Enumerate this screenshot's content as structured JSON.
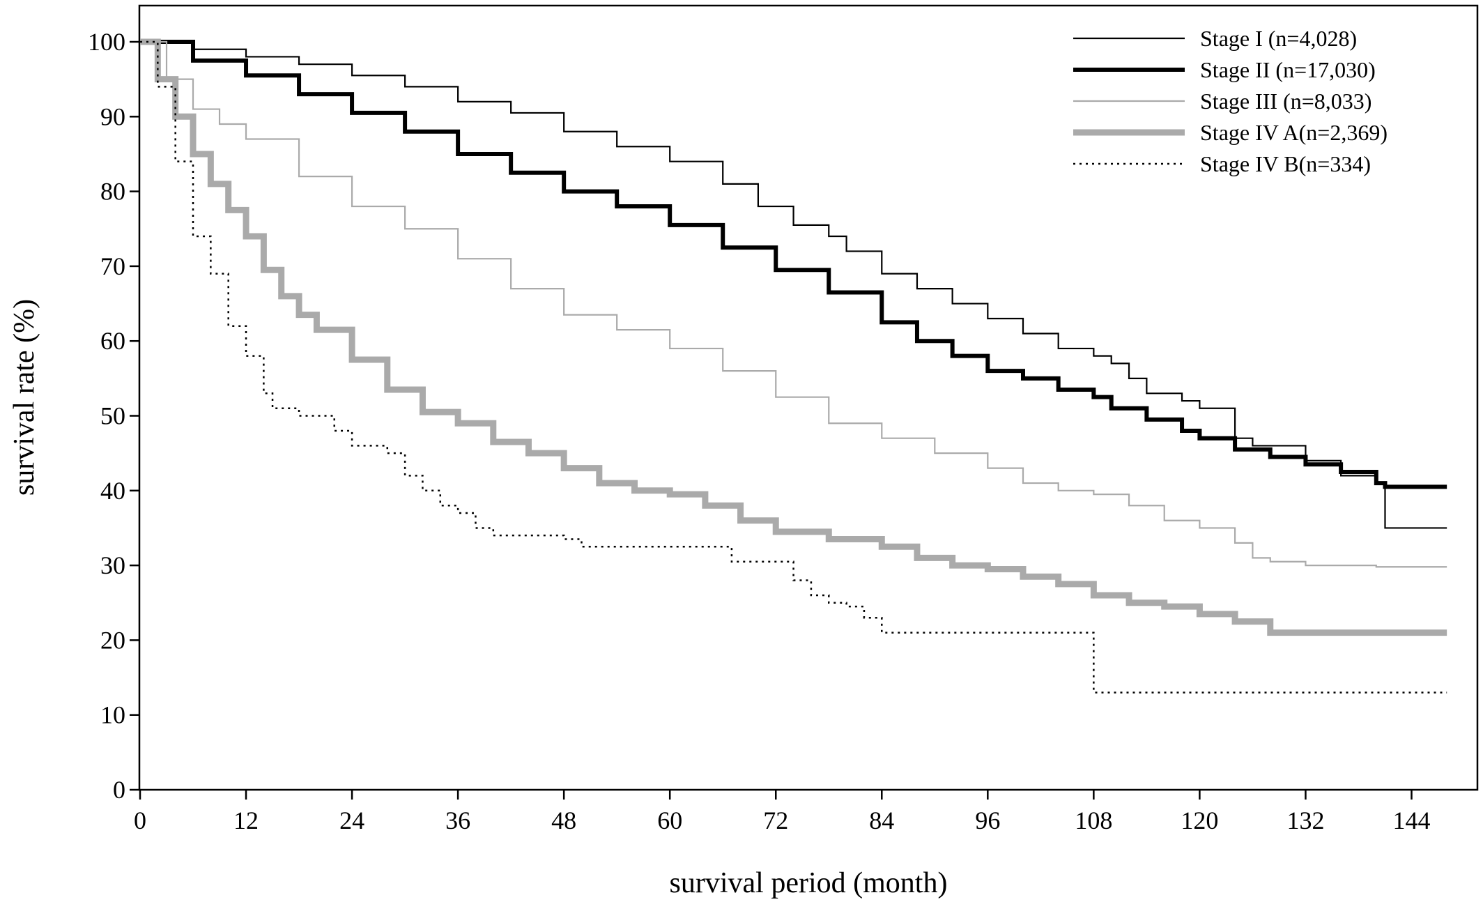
{
  "chart_data": {
    "type": "line",
    "step": true,
    "title": "",
    "xlabel": "survival period (month)",
    "ylabel": "survival rate (%)",
    "xlim": [
      0,
      148
    ],
    "ylim": [
      0,
      105
    ],
    "xticks": [
      0,
      12,
      24,
      36,
      48,
      60,
      72,
      84,
      96,
      108,
      120,
      132,
      144
    ],
    "yticks": [
      0,
      10,
      20,
      30,
      40,
      50,
      60,
      70,
      80,
      90,
      100
    ],
    "grid": false,
    "legend_position": "top-right",
    "series": [
      {
        "name": "Stage I (n=4,028)",
        "color": "#000000",
        "style": "thin-solid",
        "points": [
          [
            0,
            100
          ],
          [
            6,
            99
          ],
          [
            12,
            98
          ],
          [
            18,
            97
          ],
          [
            24,
            95.5
          ],
          [
            30,
            94
          ],
          [
            36,
            92
          ],
          [
            42,
            90.5
          ],
          [
            48,
            88
          ],
          [
            54,
            86
          ],
          [
            60,
            84
          ],
          [
            66,
            81
          ],
          [
            70,
            78
          ],
          [
            74,
            75.5
          ],
          [
            78,
            74
          ],
          [
            80,
            72
          ],
          [
            84,
            69
          ],
          [
            88,
            67
          ],
          [
            92,
            65
          ],
          [
            96,
            63
          ],
          [
            100,
            61
          ],
          [
            104,
            59
          ],
          [
            108,
            58
          ],
          [
            110,
            57
          ],
          [
            112,
            55
          ],
          [
            114,
            53
          ],
          [
            118,
            52
          ],
          [
            120,
            51
          ],
          [
            124,
            47
          ],
          [
            126,
            46
          ],
          [
            132,
            44
          ],
          [
            136,
            42
          ],
          [
            140,
            41
          ],
          [
            141,
            35
          ],
          [
            148,
            35
          ]
        ]
      },
      {
        "name": "Stage II (n=17,030)",
        "color": "#000000",
        "style": "thick-solid",
        "points": [
          [
            0,
            100
          ],
          [
            6,
            97.5
          ],
          [
            12,
            95.5
          ],
          [
            18,
            93
          ],
          [
            24,
            90.5
          ],
          [
            30,
            88
          ],
          [
            36,
            85
          ],
          [
            42,
            82.5
          ],
          [
            48,
            80
          ],
          [
            54,
            78
          ],
          [
            60,
            75.5
          ],
          [
            66,
            72.5
          ],
          [
            72,
            69.5
          ],
          [
            78,
            66.5
          ],
          [
            84,
            62.5
          ],
          [
            88,
            60
          ],
          [
            92,
            58
          ],
          [
            96,
            56
          ],
          [
            100,
            55
          ],
          [
            104,
            53.5
          ],
          [
            108,
            52.5
          ],
          [
            110,
            51
          ],
          [
            114,
            49.5
          ],
          [
            118,
            48
          ],
          [
            120,
            47
          ],
          [
            124,
            45.5
          ],
          [
            128,
            44.5
          ],
          [
            132,
            43.5
          ],
          [
            136,
            42.5
          ],
          [
            140,
            41
          ],
          [
            141,
            40.5
          ],
          [
            148,
            40.5
          ]
        ]
      },
      {
        "name": "Stage III (n=8,033)",
        "color": "#aaaaaa",
        "style": "thin-solid",
        "points": [
          [
            0,
            100
          ],
          [
            3,
            95
          ],
          [
            6,
            91
          ],
          [
            9,
            89
          ],
          [
            12,
            87
          ],
          [
            18,
            82
          ],
          [
            24,
            78
          ],
          [
            30,
            75
          ],
          [
            36,
            71
          ],
          [
            42,
            67
          ],
          [
            48,
            63.5
          ],
          [
            54,
            61.5
          ],
          [
            60,
            59
          ],
          [
            66,
            56
          ],
          [
            72,
            52.5
          ],
          [
            78,
            49
          ],
          [
            84,
            47
          ],
          [
            90,
            45
          ],
          [
            96,
            43
          ],
          [
            100,
            41
          ],
          [
            104,
            40
          ],
          [
            108,
            39.5
          ],
          [
            112,
            38
          ],
          [
            116,
            36
          ],
          [
            120,
            35
          ],
          [
            124,
            33
          ],
          [
            126,
            31
          ],
          [
            128,
            30.5
          ],
          [
            132,
            30
          ],
          [
            140,
            29.8
          ],
          [
            148,
            29.8
          ]
        ]
      },
      {
        "name": "Stage IV A(n=2,369)",
        "color": "#aaaaaa",
        "style": "thick-solid",
        "points": [
          [
            0,
            100
          ],
          [
            2,
            95
          ],
          [
            4,
            90
          ],
          [
            6,
            85
          ],
          [
            8,
            81
          ],
          [
            10,
            77.5
          ],
          [
            12,
            74
          ],
          [
            14,
            69.5
          ],
          [
            16,
            66
          ],
          [
            18,
            63.5
          ],
          [
            20,
            61.5
          ],
          [
            24,
            57.5
          ],
          [
            28,
            53.5
          ],
          [
            32,
            50.5
          ],
          [
            36,
            49
          ],
          [
            40,
            46.5
          ],
          [
            44,
            45
          ],
          [
            48,
            43
          ],
          [
            52,
            41
          ],
          [
            56,
            40
          ],
          [
            60,
            39.5
          ],
          [
            64,
            38
          ],
          [
            68,
            36
          ],
          [
            72,
            34.5
          ],
          [
            78,
            33.5
          ],
          [
            84,
            32.5
          ],
          [
            88,
            31
          ],
          [
            92,
            30
          ],
          [
            96,
            29.5
          ],
          [
            100,
            28.5
          ],
          [
            104,
            27.5
          ],
          [
            108,
            26
          ],
          [
            112,
            25
          ],
          [
            116,
            24.5
          ],
          [
            120,
            23.5
          ],
          [
            124,
            22.5
          ],
          [
            128,
            21
          ],
          [
            132,
            21
          ],
          [
            148,
            21
          ]
        ]
      },
      {
        "name": "Stage IV B(n=334)",
        "color": "#000000",
        "style": "dotted",
        "points": [
          [
            0,
            100
          ],
          [
            2,
            94
          ],
          [
            4,
            84
          ],
          [
            6,
            74
          ],
          [
            8,
            69
          ],
          [
            10,
            62
          ],
          [
            12,
            58
          ],
          [
            14,
            53
          ],
          [
            15,
            51
          ],
          [
            18,
            50
          ],
          [
            22,
            48
          ],
          [
            24,
            46
          ],
          [
            28,
            45
          ],
          [
            30,
            42
          ],
          [
            32,
            40
          ],
          [
            34,
            38
          ],
          [
            36,
            37
          ],
          [
            38,
            35
          ],
          [
            40,
            34
          ],
          [
            48,
            33.5
          ],
          [
            50,
            32.5
          ],
          [
            54,
            32.5
          ],
          [
            66,
            32.5
          ],
          [
            67,
            30.5
          ],
          [
            72,
            30.5
          ],
          [
            74,
            28
          ],
          [
            76,
            26
          ],
          [
            78,
            25
          ],
          [
            80,
            24.5
          ],
          [
            82,
            23
          ],
          [
            84,
            21
          ],
          [
            107,
            21
          ],
          [
            108,
            13
          ],
          [
            148,
            13
          ]
        ]
      }
    ]
  }
}
